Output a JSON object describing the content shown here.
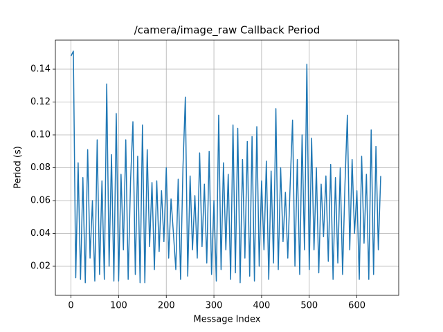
{
  "chart_data": {
    "type": "line",
    "title": "/camera/image_raw Callback Period",
    "xlabel": "Message Index",
    "ylabel": "Period (s)",
    "color": "#1f77b4",
    "grid": true,
    "xlim": [
      -32.75,
      687.75
    ],
    "ylim": [
      0.0023,
      0.1577
    ],
    "xticks": [
      0,
      100,
      200,
      300,
      400,
      500,
      600
    ],
    "yticks": [
      0.02,
      0.04,
      0.06,
      0.08,
      {
        "value": 0.1,
        "label": "0.10"
      },
      0.12,
      0.14
    ],
    "x": [
      0,
      5,
      10,
      15,
      20,
      25,
      30,
      35,
      40,
      45,
      50,
      55,
      60,
      65,
      70,
      75,
      80,
      85,
      90,
      95,
      100,
      105,
      110,
      115,
      120,
      125,
      130,
      135,
      140,
      145,
      150,
      155,
      160,
      165,
      170,
      175,
      180,
      185,
      190,
      195,
      200,
      205,
      210,
      215,
      220,
      225,
      230,
      235,
      240,
      245,
      250,
      255,
      260,
      265,
      270,
      275,
      280,
      285,
      290,
      295,
      300,
      305,
      310,
      315,
      320,
      325,
      330,
      335,
      340,
      345,
      350,
      355,
      360,
      365,
      370,
      375,
      380,
      385,
      390,
      395,
      400,
      405,
      410,
      415,
      420,
      425,
      430,
      435,
      440,
      445,
      450,
      455,
      460,
      465,
      470,
      475,
      480,
      485,
      490,
      495,
      500,
      505,
      510,
      515,
      520,
      525,
      530,
      535,
      540,
      545,
      550,
      555,
      560,
      565,
      570,
      575,
      580,
      585,
      590,
      595,
      600,
      605,
      610,
      615,
      620,
      625,
      630,
      635,
      640,
      645,
      650
    ],
    "values": [
      0.148,
      0.151,
      0.013,
      0.083,
      0.012,
      0.074,
      0.01,
      0.091,
      0.025,
      0.06,
      0.011,
      0.097,
      0.015,
      0.072,
      0.012,
      0.131,
      0.02,
      0.088,
      0.011,
      0.113,
      0.011,
      0.076,
      0.03,
      0.097,
      0.012,
      0.072,
      0.108,
      0.015,
      0.087,
      0.01,
      0.106,
      0.01,
      0.091,
      0.032,
      0.071,
      0.018,
      0.072,
      0.029,
      0.066,
      0.035,
      0.08,
      0.025,
      0.061,
      0.04,
      0.018,
      0.073,
      0.012,
      0.08,
      0.123,
      0.014,
      0.075,
      0.03,
      0.063,
      0.025,
      0.089,
      0.032,
      0.07,
      0.022,
      0.09,
      0.015,
      0.06,
      0.011,
      0.112,
      0.018,
      0.083,
      0.03,
      0.076,
      0.012,
      0.106,
      0.016,
      0.104,
      0.01,
      0.085,
      0.025,
      0.096,
      0.014,
      0.099,
      0.011,
      0.105,
      0.02,
      0.072,
      0.03,
      0.084,
      0.012,
      0.078,
      0.022,
      0.116,
      0.018,
      0.08,
      0.035,
      0.065,
      0.025,
      0.07,
      0.109,
      0.02,
      0.085,
      0.015,
      0.1,
      0.03,
      0.143,
      0.018,
      0.098,
      0.03,
      0.08,
      0.016,
      0.07,
      0.038,
      0.075,
      0.023,
      0.082,
      0.012,
      0.074,
      0.022,
      0.08,
      0.015,
      0.07,
      0.112,
      0.03,
      0.085,
      0.04,
      0.066,
      0.012,
      0.087,
      0.034,
      0.076,
      0.012,
      0.103,
      0.015,
      0.093,
      0.03,
      0.075
    ]
  }
}
